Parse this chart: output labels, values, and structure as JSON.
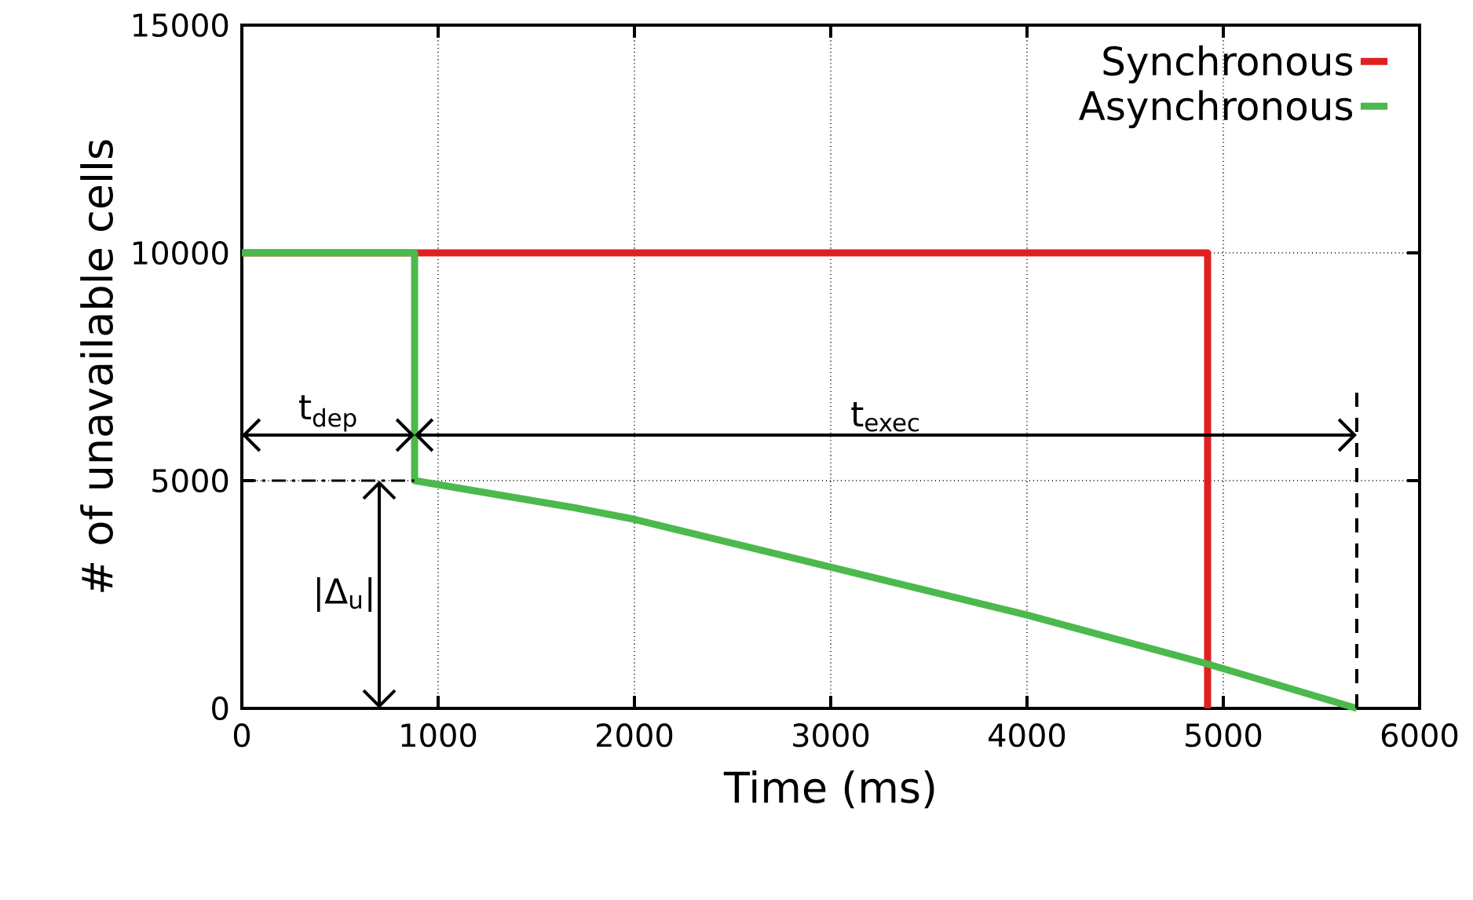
{
  "chart_data": {
    "type": "line",
    "xlabel": "Time (ms)",
    "ylabel": "# of unavailable cells",
    "xlim": [
      0,
      6000
    ],
    "ylim": [
      0,
      15000
    ],
    "xticks": [
      0,
      1000,
      2000,
      3000,
      4000,
      5000,
      6000
    ],
    "yticks": [
      0,
      5000,
      10000,
      15000
    ],
    "grid": true,
    "legend": "top right",
    "series": [
      {
        "name": "Synchronous",
        "color": "#e02020",
        "x": [
          0,
          4920,
          4920
        ],
        "values": [
          10000,
          10000,
          0
        ]
      },
      {
        "name": "Asynchronous",
        "color": "#4cb94c",
        "x": [
          0,
          880,
          880,
          1700,
          2000,
          3000,
          4000,
          4900,
          5680
        ],
        "values": [
          10000,
          10000,
          5000,
          4400,
          4150,
          3100,
          2050,
          1000,
          0
        ]
      }
    ],
    "ref_lines": [
      {
        "axis": "x",
        "value": 5680,
        "line_style": "dashed",
        "color": "#000000"
      },
      {
        "axis": "y",
        "value": 5000,
        "line_style": "dashed",
        "color": "#000000"
      }
    ],
    "annotations": [
      "t$_{dep}$",
      "t$_{exec}$",
      "|Δ$_{u}$|"
    ]
  }
}
